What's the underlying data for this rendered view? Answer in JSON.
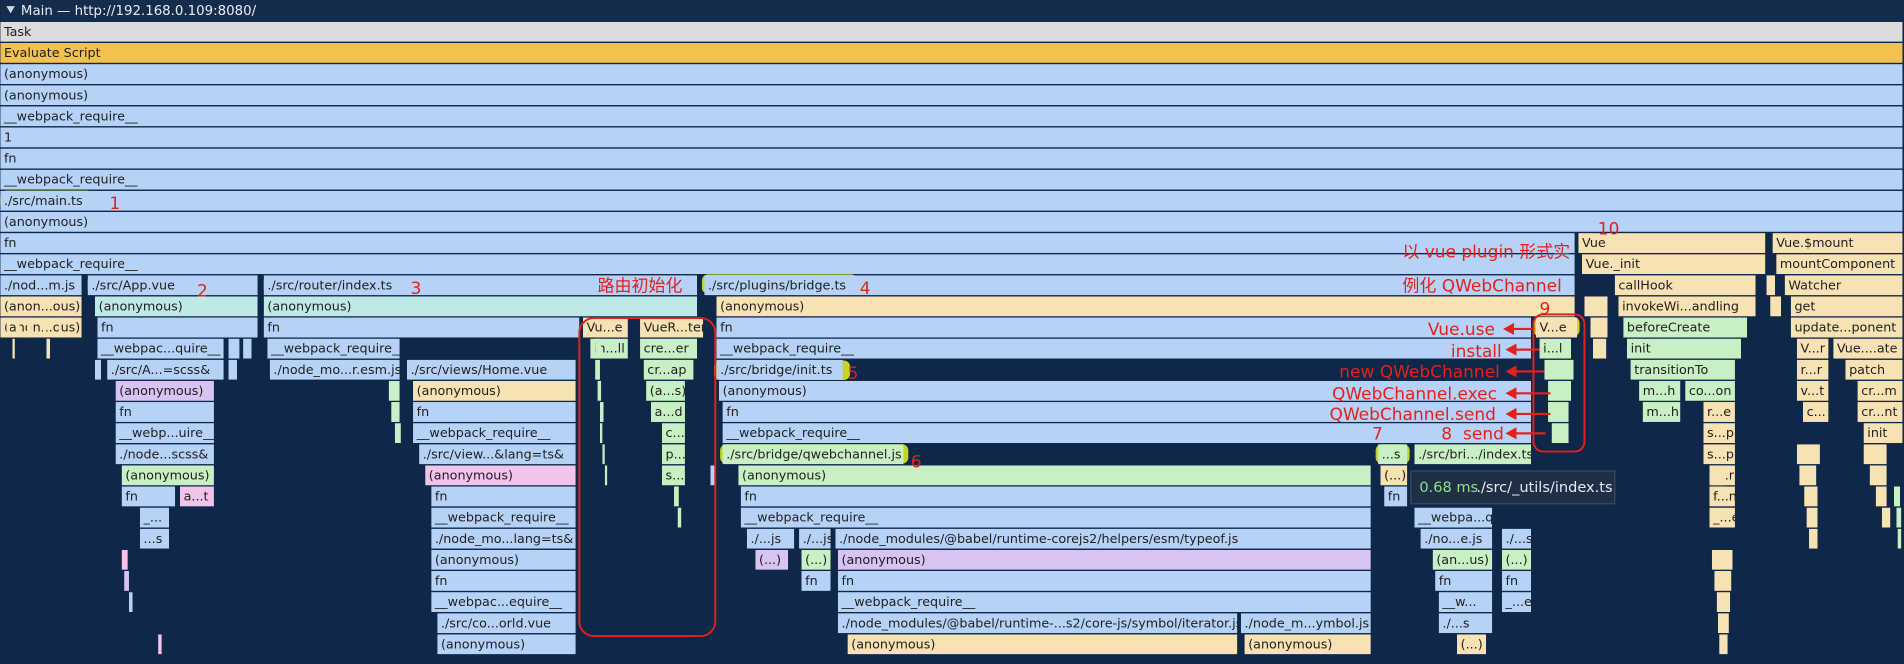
{
  "header": {
    "title": "Main — http://192.168.0.109:8080/"
  },
  "full_rows": [
    "Task",
    "Evaluate Script",
    "(anonymous)",
    "(anonymous)",
    "__webpack_require__",
    "1",
    "fn",
    "__webpack_require__",
    "./src/main.ts",
    "(anonymous)",
    "fn",
    "__webpack_require__"
  ],
  "frames": [
    "Vue",
    "Vue.$mount",
    "Vue._init",
    "mountComponent",
    "./nod...m.js",
    "./src/App.vue",
    "./src/router/index.ts",
    "./src/plugins/bridge.ts",
    "callHook",
    "Watcher",
    "(anon...ous)",
    "(anonymous)",
    "(anonymous)",
    "(anonymous)",
    "invokeWi...andling",
    "get",
    "(anon...ous)",
    "fn",
    "fn",
    "Vu...e",
    "VueR...ter",
    "fn",
    "V...e",
    "beforeCreate",
    "update...ponent",
    "__webpac...quire__",
    "__webpack_require__",
    "in...ll",
    "cre...er",
    "__webpack_require__",
    "i...l",
    "init",
    "V...r",
    "Vue....ate",
    "./src/A...=scss&",
    "./node_mo...r.esm.js",
    "./src/views/Home.vue",
    "cr...ap",
    "./src/bridge/init.ts",
    "transitionTo",
    "r...r",
    "patch",
    "(anonymous)",
    "(anonymous)",
    "(a...s)",
    "(anonymous)",
    "m...h",
    "co...on",
    "v...t",
    "cr...m",
    "fn",
    "fn",
    "a...d",
    "fn",
    "m...h",
    "r...e",
    "c...",
    "cr...nt",
    "__webp...uire__",
    "__webpack_require__",
    "c...",
    "__webpack_require__",
    "s...p",
    "init",
    "./node...scss&",
    "./src/view...&lang=ts&",
    "p...",
    "./src/bridge/qwebchannel.js",
    "...s",
    "./src/bri.../index.ts",
    "s...p",
    "(anonymous)",
    "(anonymous)",
    "s...",
    "(anonymous)",
    "(...)",
    "i...r",
    "fn",
    "a...t",
    "fn",
    "fn",
    "fn",
    "f...n",
    "_...",
    "__webpack_require__",
    "__webpack_require__",
    "__webpa...quire__",
    "_...e",
    "...s",
    "./node_mo...lang=ts&",
    "./...js",
    "./...js",
    "./node_modules/@babel/runtime-corejs2/helpers/esm/typeof.js",
    "./no...e.js",
    "./...s",
    "(anonymous)",
    "(...)",
    "(...)",
    "(anonymous)",
    "(an...us)",
    "(...)",
    "fn",
    "fn",
    "fn",
    "fn",
    "fn",
    "__webpac...equire__",
    "__webpack_require__",
    "__w...",
    "_...e",
    "./src/co...orld.vue",
    "./node_modules/@babel/runtime-...s2/core-js/symbol/iterator.js",
    "./node_m...ymbol.js",
    "./...s",
    "(anonymous)",
    "(anonymous)",
    "(anonymous)",
    "(...)"
  ],
  "annotations": [
    "1",
    "2",
    "3",
    "路由初始化",
    "4",
    "5",
    "6",
    "7",
    "8",
    "send",
    "9",
    "10",
    "以 vue plugin 形式实",
    "例化 QWebChannel",
    "Vue.use",
    "install",
    "new QWebChannel",
    "QWebChannel.exec",
    "QWebChannel.send"
  ],
  "tooltip": {
    "time": "0.68 ms",
    "label": "./src/_utils/index.ts"
  }
}
